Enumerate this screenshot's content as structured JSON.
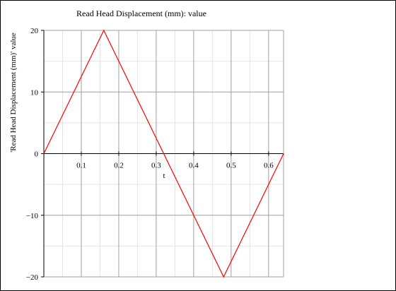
{
  "chart_data": {
    "type": "line",
    "title": "Read Head Displacement (mm): value",
    "xlabel": "t",
    "ylabel": "'Read Head Displacement (mm)' value",
    "xlim": [
      0,
      0.64
    ],
    "ylim": [
      -20,
      20
    ],
    "x_ticks": [
      0.1,
      0.2,
      0.3,
      0.4,
      0.5,
      0.6
    ],
    "x_tick_labels": [
      "0.1",
      "0.2",
      "0.3",
      "0.4",
      "0.5",
      "0.6"
    ],
    "y_ticks": [
      -20,
      -10,
      0,
      10,
      20
    ],
    "y_tick_labels": [
      "−20",
      "−10",
      "0",
      "10",
      "20"
    ],
    "x_minor_step": 0.05,
    "y_minor_step": 5,
    "grid": true,
    "series": [
      {
        "color": "#ff0000",
        "x": [
          0,
          0.16,
          0.48,
          0.64
        ],
        "y": [
          0,
          20,
          -20,
          0
        ]
      }
    ],
    "colors": {
      "major_grid": "#a0a0a0",
      "minor_grid": "#e3e3e3",
      "axis": "#000000",
      "line": "#ff0000"
    }
  }
}
